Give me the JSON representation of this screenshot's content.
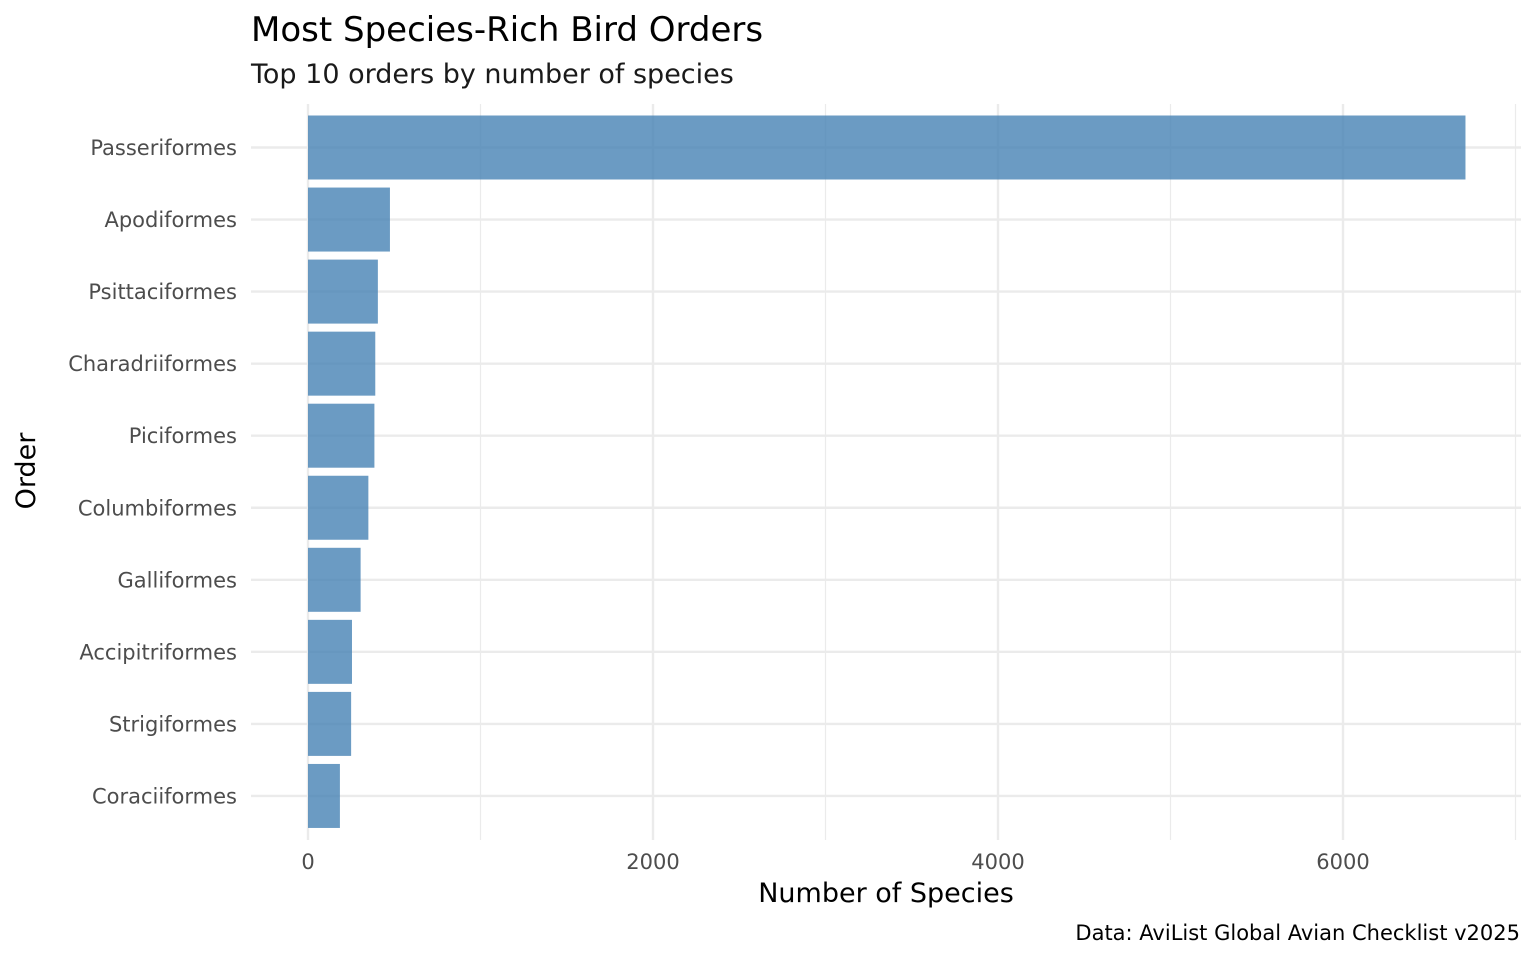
{
  "chart_data": {
    "type": "bar",
    "orientation": "horizontal",
    "title": "Most Species-Rich Bird Orders",
    "subtitle": "Top 10 orders by number of species",
    "xlabel": "Number of Species",
    "ylabel": "Order",
    "caption": "Data: AviList Global Avian Checklist v2025",
    "categories": [
      "Passeriformes",
      "Apodiformes",
      "Psittaciformes",
      "Charadriiformes",
      "Piciformes",
      "Columbiformes",
      "Galliformes",
      "Accipitriformes",
      "Strigiformes",
      "Coraciiformes"
    ],
    "values": [
      6710,
      475,
      405,
      390,
      385,
      350,
      305,
      255,
      250,
      185
    ],
    "xlim": [
      0,
      7000
    ],
    "x_ticks": [
      0,
      2000,
      4000,
      6000
    ],
    "x_tick_labels": [
      "0",
      "2000",
      "4000",
      "6000"
    ],
    "grid": true,
    "bar_color": "#4682b4",
    "bar_opacity": 0.8
  }
}
